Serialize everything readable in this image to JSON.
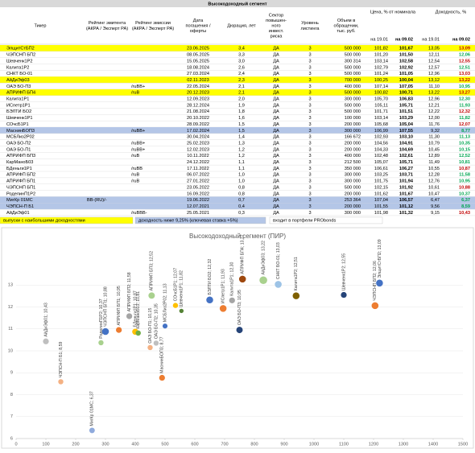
{
  "table": {
    "title": "Высокодоходный сегмент",
    "headers": [
      [
        "Тикер"
      ],
      [
        "Рейтинг эмитента",
        "(АКРА / Эксперт РА)"
      ],
      [
        "Рейтинг эмиссии",
        "(АКРА / Эксперт РА)"
      ],
      [
        "Дата",
        "погашения /",
        "оферты"
      ],
      [
        "Дюрация, лет"
      ],
      [
        "Сектор",
        "повышен-",
        "ного",
        "инвест.",
        "риска"
      ],
      [
        "Уровень",
        "листинга"
      ],
      [
        "Объем в",
        "обращении,",
        "тыс. руб."
      ]
    ],
    "group_headers": [
      "Цена, % от номинала",
      "Доходность, %"
    ],
    "subheaders": [
      "на 19.01",
      "на 09.02",
      "на 19.01",
      "на 09.02"
    ],
    "rows": [
      [
        "ЭлщитСтБП2",
        "",
        "",
        "23.06.2025",
        "3,4",
        "ДА",
        "3",
        "500 000",
        "101,82",
        "101,67",
        "13,05",
        "13,09"
      ],
      [
        "ЧЭПСНП БП2",
        "",
        "",
        "08.05.2025",
        "3,3",
        "ДА",
        "3",
        "500 000",
        "101,20",
        "101,50",
        "12,11",
        "12,06"
      ],
      [
        "Шевченк1Р2",
        "",
        "",
        "15.05.2025",
        "3,0",
        "ДА",
        "3",
        "300 314",
        "103,14",
        "102,58",
        "12,54",
        "12,55"
      ],
      [
        "Калита1Р2",
        "",
        "",
        "18.08.2024",
        "2,6",
        "ДА",
        "3",
        "500 000",
        "102,79",
        "102,92",
        "12,57",
        "12,51"
      ],
      [
        "СНКТ БО-01",
        "",
        "",
        "27.03.2024",
        "2,4",
        "ДА",
        "3",
        "500 000",
        "101,24",
        "101,05",
        "12,96",
        "13,03"
      ],
      [
        "АйДиЭф03",
        "",
        "",
        "02.11.2023",
        "2,3",
        "ДА",
        "3",
        "700 000",
        "100,25",
        "100,04",
        "13,12",
        "13,22"
      ],
      [
        "ОАЭ БО-П3",
        "",
        "/ruBB+",
        "22.05.2024",
        "2,1",
        "ДА",
        "3",
        "400 000",
        "107,14",
        "107,05",
        "11,10",
        "10,95"
      ],
      [
        "АПРИФП БП4",
        "",
        "/ruB",
        "20.12.2023",
        "2,1",
        "ДА",
        "3",
        "500 000",
        "100,82",
        "100,71",
        "13,22",
        "13,27"
      ],
      [
        "Калита1Р1",
        "",
        "",
        "12.09.2023",
        "2,0",
        "ДА",
        "3",
        "300 000",
        "105,70",
        "106,83",
        "12,96",
        "12,30"
      ],
      [
        "ИСпетр1Р1",
        "",
        "",
        "28.12.2024",
        "1,9",
        "ДА",
        "3",
        "500 000",
        "105,11",
        "105,71",
        "12,21",
        "11,93"
      ],
      [
        "БЭЛТИ БО2",
        "",
        "",
        "21.08.2024",
        "1,8",
        "ДА",
        "3",
        "500 000",
        "101,71",
        "101,51",
        "12,22",
        "12,32"
      ],
      [
        "Шевченк1Р1",
        "",
        "",
        "20.10.2022",
        "1,6",
        "ДА",
        "3",
        "100 000",
        "103,14",
        "103,29",
        "12,00",
        "11,82"
      ],
      [
        "СОчсБ1Р1",
        "",
        "",
        "28.09.2022",
        "1,5",
        "ДА",
        "3",
        "200 000",
        "105,68",
        "105,04",
        "11,76",
        "12,07"
      ],
      [
        "МаснинБОП3",
        "",
        "/ruBB+",
        "17.02.2024",
        "1,5",
        "ДА",
        "3",
        "300 000",
        "106,99",
        "107,55",
        "9,32",
        "8,77"
      ],
      [
        "МСБЛиз2Р02",
        "",
        "",
        "30.04.2024",
        "1,4",
        "ДА",
        "3",
        "166 672",
        "102,93",
        "103,10",
        "11,30",
        "11,13"
      ],
      [
        "ОАЭ БО-П2",
        "",
        "/ruBB+",
        "25.02.2023",
        "1,3",
        "ДА",
        "3",
        "200 000",
        "104,56",
        "104,91",
        "10,79",
        "10,35"
      ],
      [
        "ОАЭ БО-П1",
        "",
        "/ruBB+",
        "12.02.2023",
        "1,2",
        "ДА",
        "3",
        "200 000",
        "104,33",
        "104,69",
        "10,45",
        "10,15"
      ],
      [
        "АПРИФП БП3",
        "",
        "/ruB",
        "10.11.2022",
        "1,2",
        "ДА",
        "3",
        "400 000",
        "102,48",
        "102,61",
        "12,89",
        "12,52"
      ],
      [
        "КарМаноБ03",
        "",
        "",
        "24.12.2022",
        "1,1",
        "ДА",
        "3",
        "212 500",
        "105,07",
        "105,71",
        "11,49",
        "10,81"
      ],
      [
        "БДеньги1Р1",
        "",
        "/ruBB",
        "17.11.2022",
        "1,1",
        "ДА",
        "3",
        "350 000",
        "106,61",
        "106,27",
        "10,55",
        "10,87"
      ],
      [
        "АПРИФП БП2",
        "",
        "/ruB",
        "06.07.2022",
        "1,0",
        "ДА",
        "3",
        "300 000",
        "103,25",
        "103,71",
        "12,28",
        "11,58"
      ],
      [
        "АПРИФП БП1",
        "",
        "/ruB",
        "27.01.2022",
        "1,0",
        "ДА",
        "3",
        "300 000",
        "101,75",
        "101,94",
        "12,76",
        "10,95"
      ],
      [
        "ЧЭПСНП БП1",
        "",
        "",
        "23.05.2022",
        "0,8",
        "ДА",
        "3",
        "500 000",
        "102,15",
        "101,92",
        "10,61",
        "10,88"
      ],
      [
        "РоделинП1Р2",
        "",
        "",
        "16.09.2022",
        "0,8",
        "ДА",
        "3",
        "200 000",
        "101,62",
        "101,67",
        "10,47",
        "10,37"
      ],
      [
        "МигКр 01МС",
        "BB-(RU)/-",
        "",
        "19.06.2022",
        "0,7",
        "ДА",
        "3",
        "253 364",
        "107,04",
        "106,57",
        "6,47",
        "6,37"
      ],
      [
        "ЧЭПСН-П Б1",
        "",
        "",
        "12.07.2021",
        "0,4",
        "ДА",
        "3",
        "200 000",
        "101,55",
        "101,12",
        "9,56",
        "8,59"
      ],
      [
        "АйДиЭф01",
        "",
        "/ruBBB-",
        "25.05.2021",
        "0,3",
        "ДА",
        "3",
        "300 000",
        "101,98",
        "101,32",
        "9,15",
        "10,43"
      ]
    ],
    "row_fills": [
      "#ffff00",
      null,
      null,
      null,
      null,
      "#ffff00",
      null,
      "#ffff00",
      null,
      null,
      null,
      null,
      null,
      "#b4c6e7",
      null,
      null,
      null,
      null,
      null,
      null,
      null,
      null,
      null,
      null,
      "#b4c6e7",
      "#b4c6e7",
      null
    ],
    "legend": [
      {
        "text": "выпуски с наибольшими доходностями",
        "color": "#ffff00"
      },
      {
        "text": "доходность ниже 9,25% (ключевая ставка +5%)",
        "color": "#b4c6e7"
      },
      {
        "text": "входит в портфели PRObonds",
        "color": "#ffffff"
      }
    ]
  },
  "chart_data": {
    "type": "scatter",
    "title": "Высокодоходный сегмент (ПИР)",
    "x": [
      100,
      150,
      255,
      285,
      300,
      345,
      380,
      400,
      410,
      455,
      450,
      470,
      500,
      490,
      535,
      555,
      650,
      695,
      725,
      750,
      760,
      830,
      880,
      940,
      1100,
      1205,
      1220
    ],
    "values": [
      10.43,
      8.59,
      6.37,
      10.37,
      10.88,
      10.95,
      11.58,
      10.87,
      10.81,
      12.52,
      10.15,
      10.35,
      11.13,
      8.77,
      12.07,
      11.82,
      12.32,
      11.93,
      12.3,
      10.95,
      13.27,
      13.22,
      13.03,
      12.51,
      12.55,
      12.06,
      13.09
    ],
    "sizes": [
      300000,
      200000,
      253364,
      200000,
      500000,
      300000,
      300000,
      350000,
      212500,
      400000,
      200000,
      200000,
      166672,
      300000,
      200000,
      100000,
      500000,
      500000,
      300000,
      400000,
      500000,
      700000,
      500000,
      500000,
      300314,
      500000,
      500000
    ],
    "colors": [
      "#bfbfbf",
      "#f4b183",
      "#8faadc",
      "#a9d18e",
      "#4472c4",
      "#ed7d31",
      "#a5a5a5",
      "#ffc000",
      "#70ad47",
      "#a9d18e",
      "#f4b183",
      "#bfbfbf",
      "#4472c4",
      "#ed7d31",
      "#ffc000",
      "#548235",
      "#4472c4",
      "#ed7d31",
      "#a5a5a5",
      "#264478",
      "#9e480e",
      "#a9d18e",
      "#9dc3e6",
      "#7f6000",
      "#264478",
      "#ed7d31",
      "#4472c4"
    ],
    "labels": [
      "АйДиЭф01; 10,43",
      "ЧЭПСН-П Б1; 8,59",
      "МигКр 01МС; 6,37",
      "РоделинП1Р2; 10,37",
      "ЧЭПСНП БП1; 10,88",
      "АПРИФП БП1; 10,95",
      "АПРИФП БП2; 11,58",
      "БДеньги1Р1; 10,87",
      "КарМаноБ03; 10,81",
      "АПРИФП БП3; 12,52",
      "ОАЭ БО-П1; 10,15",
      "ОАЭ БО-П2; 10,35",
      "МСБЛиз2Р02; 11,13",
      "МаснинБОП3; 8,77",
      "СОчсБ1Р1; 12,07",
      "Шевченк1Р1; 11,82",
      "БЭЛТИ БО2; 12,32",
      "ИСпетр1Р1; 11,93",
      "Калита1Р1; 12,30",
      "ОАЭ БО-П3; 10,95",
      "АПРИФП БП4; 13,27",
      "АйДиЭф03; 13,22",
      "СНКТ БО-01; 13,03",
      "Калита1Р2; 12,51",
      "Шевченк1Р2; 12,55",
      "ЧЭПСНП БП2; 12,06",
      "ЭлщитСтБП2; 13,09"
    ],
    "xlim": [
      0,
      1500
    ],
    "xticks": [
      0,
      100,
      200,
      300,
      400,
      500,
      600,
      700,
      800,
      900,
      1000,
      1100,
      1200,
      1300,
      1400,
      1500
    ],
    "ylim": [
      6,
      14
    ],
    "yticks": [
      6,
      7,
      8,
      9,
      10,
      11,
      12,
      13
    ],
    "grid": true
  }
}
